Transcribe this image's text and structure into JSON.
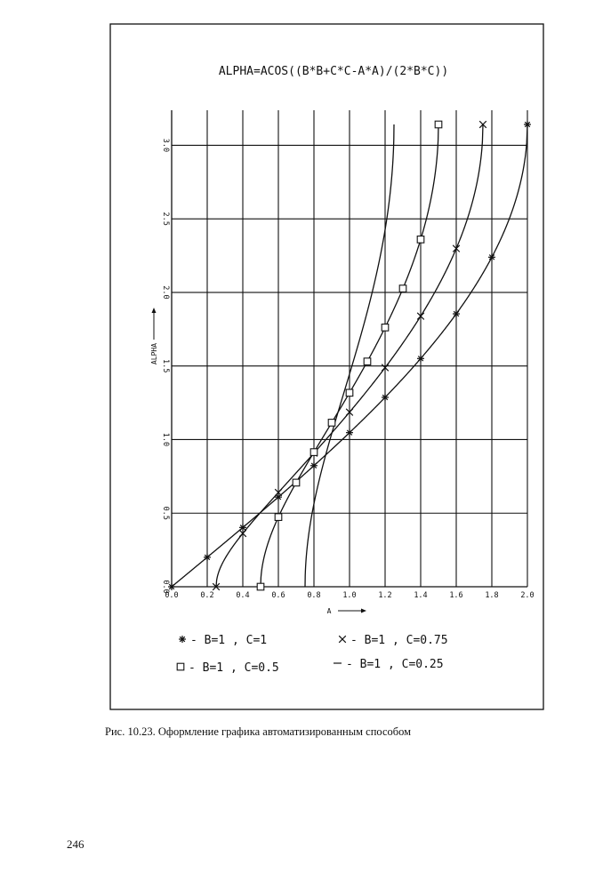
{
  "chart_data": {
    "type": "line",
    "title": "ALPHA=ACOS((B*B+C*C-A*A)/(2*B*C))",
    "xlabel": "A",
    "ylabel": "ALPHA",
    "xlim": [
      0.0,
      2.0
    ],
    "ylim": [
      0.0,
      3.14159
    ],
    "x_ticks": [
      0.0,
      0.2,
      0.4,
      0.6,
      0.8,
      1.0,
      1.2,
      1.4,
      1.6,
      1.8,
      2.0
    ],
    "x_tick_labels": [
      "0.0",
      "0.2",
      "0.4",
      "0.6",
      "0.8",
      "1.0",
      "1.2",
      "1.4",
      "1.6",
      "1.8",
      "2.0"
    ],
    "y_ticks": [
      0.0,
      0.5,
      1.0,
      1.5,
      2.0,
      2.5,
      3.0
    ],
    "y_tick_labels": [
      "0.0",
      "0.5",
      "1.0",
      "1.5",
      "2.0",
      "2.5",
      "3.0"
    ],
    "grid": true,
    "legend_position": "bottom",
    "series": [
      {
        "name": "B=1 , C=1",
        "b": 1,
        "c": 1,
        "marker": "asterisk",
        "legend_symbol": "*",
        "marker_x": [
          0.0,
          0.2,
          0.4,
          0.6,
          0.8,
          1.0,
          1.2,
          1.4,
          1.6,
          1.8,
          2.0
        ]
      },
      {
        "name": "B=1 , C=0.75",
        "b": 1,
        "c": 0.75,
        "marker": "cross",
        "legend_symbol": "X",
        "marker_x": [
          0.25,
          0.4,
          0.6,
          0.8,
          1.0,
          1.2,
          1.4,
          1.6,
          1.75
        ]
      },
      {
        "name": "B=1 , C=0.5",
        "b": 1,
        "c": 0.5,
        "marker": "square",
        "legend_symbol": "□",
        "marker_x": [
          0.5,
          0.6,
          0.7,
          0.8,
          0.9,
          1.0,
          1.1,
          1.2,
          1.3,
          1.4,
          1.5
        ]
      },
      {
        "name": "B=1 , C=0.25",
        "b": 1,
        "c": 0.25,
        "marker": "none",
        "legend_symbol": "-",
        "marker_x": []
      }
    ]
  },
  "legend": {
    "items": [
      {
        "symbol": "*",
        "sep": " - ",
        "label": "B=1 , C=1"
      },
      {
        "symbol": "X",
        "sep": " - ",
        "label": "B=1 , C=0.75"
      },
      {
        "symbol": "□",
        "sep": "- ",
        "label": "B=1 , C=0.5"
      },
      {
        "symbol": "-",
        "sep": " - ",
        "label": "B=1 , C=0.25"
      }
    ]
  },
  "caption": "Рис. 10.23. Оформление графика автоматизированным способом",
  "page_number": "246"
}
